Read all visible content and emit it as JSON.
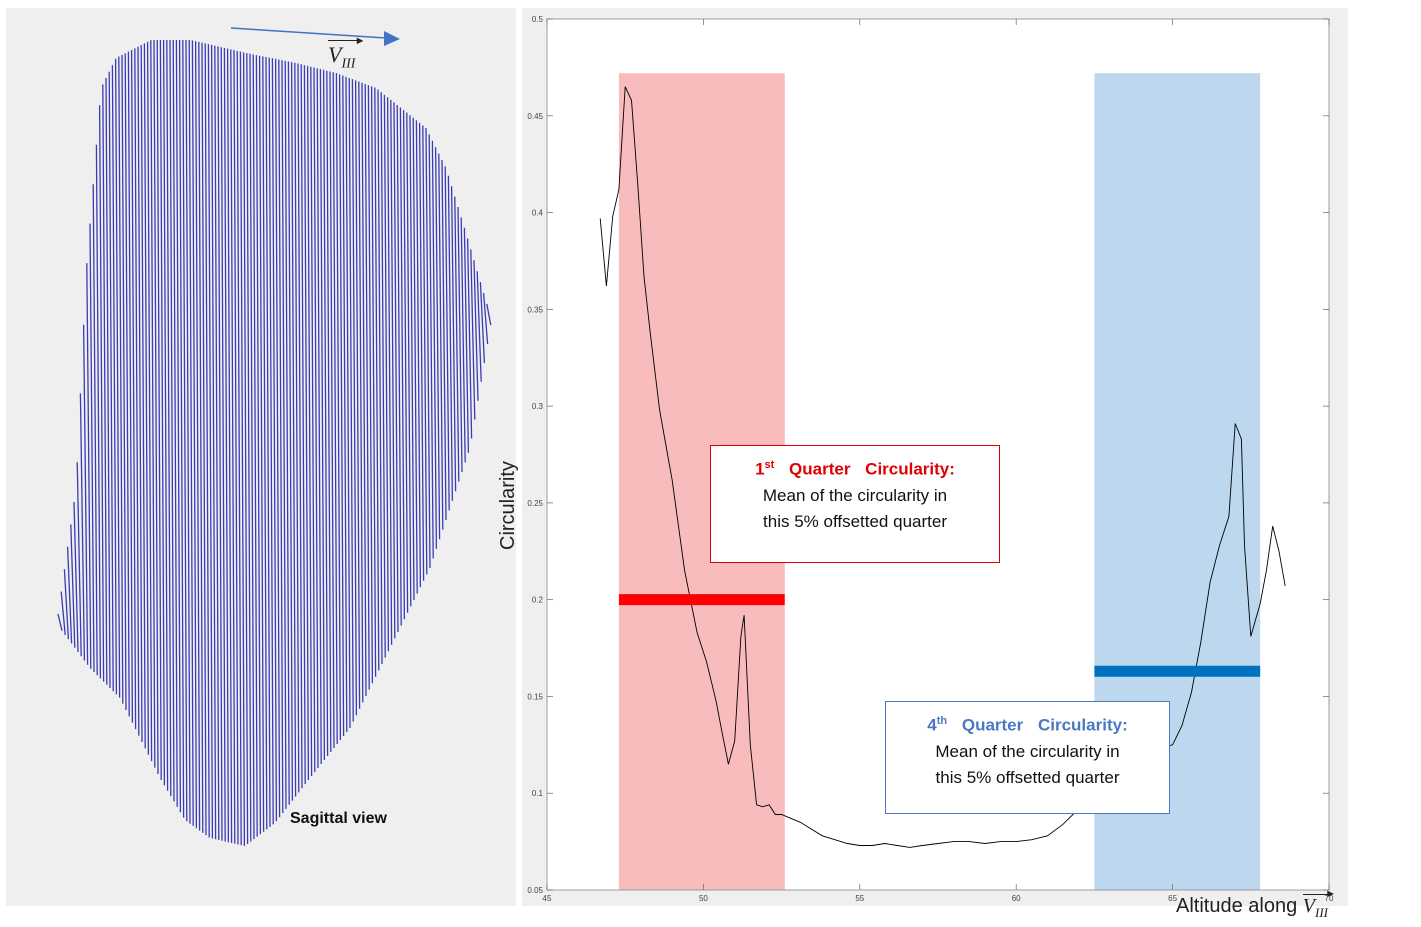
{
  "left_panel": {
    "view_label": "Sagittal view",
    "vector_label": "V",
    "vector_subscript": "III",
    "line_color": "#3b3bb5"
  },
  "annotations": {
    "q1": {
      "ordinal": "1",
      "ordinal_suffix": "st",
      "title": "Quarter Circularity:",
      "line1": "Mean of the circularity in",
      "line2": "this 5% offsetted quarter",
      "color": "#e00000"
    },
    "q4": {
      "ordinal": "4",
      "ordinal_suffix": "th",
      "title": "Quarter Circularity:",
      "line1": "Mean of the circularity in",
      "line2": "this 5% offsetted quarter",
      "color": "#4a78c4"
    }
  },
  "chart_data": {
    "type": "line",
    "ylabel": "Circularity",
    "xlabel_text": "Altitude along ",
    "xlabel_vector": "V",
    "xlabel_subscript": "III",
    "xlim": [
      45,
      70
    ],
    "ylim": [
      0.05,
      0.5
    ],
    "x_ticks": [
      "45",
      "50",
      "55",
      "60",
      "65",
      "70"
    ],
    "y_ticks": [
      "0.05",
      "0.1",
      "0.15",
      "0.2",
      "0.25",
      "0.3",
      "0.35",
      "0.4",
      "0.45",
      "0.5"
    ],
    "grid": false,
    "series": [
      {
        "color": "#000000",
        "x": [
          46.7,
          46.9,
          47.1,
          47.3,
          47.5,
          47.7,
          47.9,
          48.1,
          48.3,
          48.6,
          49.0,
          49.4,
          49.8,
          50.1,
          50.4,
          50.6,
          50.8,
          51.0,
          51.2,
          51.3,
          51.5,
          51.7,
          51.9,
          52.1,
          52.3,
          52.5,
          52.8,
          53.1,
          53.4,
          53.8,
          54.2,
          54.6,
          55.0,
          55.4,
          55.8,
          56.2,
          56.6,
          57.0,
          57.5,
          58.0,
          58.5,
          59.0,
          59.5,
          60.0,
          60.5,
          61.0,
          61.5,
          62.0,
          62.5,
          63.0,
          63.5,
          64.0,
          64.5,
          65.0,
          65.3,
          65.6,
          65.9,
          66.2,
          66.5,
          66.8,
          67.0,
          67.2,
          67.3,
          67.5,
          67.8,
          68.0,
          68.2,
          68.4,
          68.6
        ],
        "y": [
          0.397,
          0.362,
          0.398,
          0.412,
          0.465,
          0.458,
          0.415,
          0.367,
          0.338,
          0.298,
          0.262,
          0.215,
          0.183,
          0.168,
          0.148,
          0.131,
          0.115,
          0.127,
          0.181,
          0.192,
          0.125,
          0.094,
          0.093,
          0.094,
          0.089,
          0.089,
          0.087,
          0.085,
          0.082,
          0.078,
          0.076,
          0.074,
          0.073,
          0.073,
          0.074,
          0.073,
          0.072,
          0.073,
          0.074,
          0.075,
          0.075,
          0.074,
          0.075,
          0.075,
          0.076,
          0.078,
          0.084,
          0.092,
          0.105,
          0.112,
          0.118,
          0.122,
          0.123,
          0.125,
          0.135,
          0.152,
          0.178,
          0.209,
          0.228,
          0.243,
          0.291,
          0.283,
          0.228,
          0.181,
          0.198,
          0.215,
          0.238,
          0.225,
          0.207
        ]
      }
    ],
    "regions": [
      {
        "x_start": 47.3,
        "x_end": 52.6,
        "color": "#f9bcbc",
        "mean": 0.2,
        "mean_color": "#ff0000"
      },
      {
        "x_start": 62.5,
        "x_end": 67.8,
        "color": "#bcd7ee",
        "mean": 0.163,
        "mean_color": "#0070c0"
      }
    ]
  }
}
